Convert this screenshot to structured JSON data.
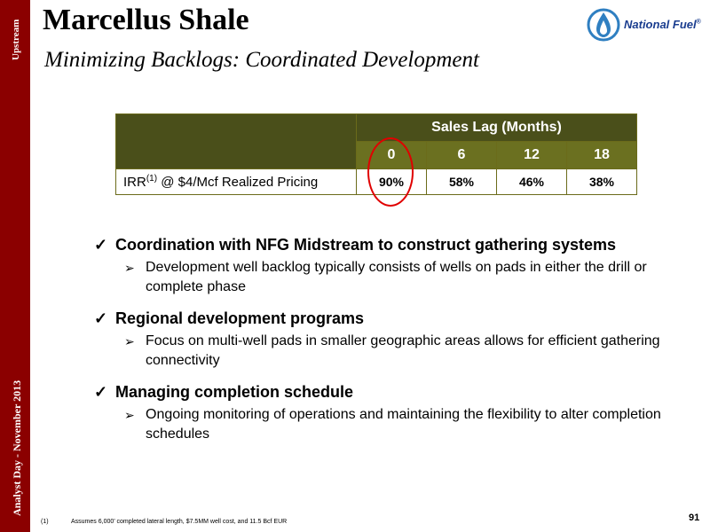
{
  "sidebar": {
    "top_label": "Upstream",
    "bottom_label": "Analyst Day - November 2013"
  },
  "header": {
    "title": "Marcellus Shale",
    "subtitle": "Minimizing Backlogs: Coordinated Development"
  },
  "logo": {
    "text": "National Fuel",
    "mark": "®",
    "icon": "flame-drop-icon",
    "color": "#1a3d8f"
  },
  "table": {
    "group_header": "Sales Lag (Months)",
    "columns": [
      "0",
      "6",
      "12",
      "18"
    ],
    "row": {
      "label_prefix": "IRR",
      "label_sup": "(1)",
      "label_suffix": " @ $4/Mcf Realized Pricing",
      "values": [
        "90%",
        "58%",
        "46%",
        "38%"
      ]
    },
    "highlight_color": "#e00000"
  },
  "bullets": [
    {
      "text": "Coordination with NFG Midstream to construct gathering systems",
      "sub": "Development well backlog typically consists of wells on pads in either the drill or complete phase"
    },
    {
      "text": "Regional development programs",
      "sub": "Focus on multi-well pads in smaller geographic areas allows for efficient gathering connectivity"
    },
    {
      "text": "Managing completion schedule",
      "sub": "Ongoing monitoring of operations and maintaining the flexibility to alter completion schedules"
    }
  ],
  "footnote": {
    "mark": "(1)",
    "text": "Assumes 6,000’ completed lateral length, $7.5MM well cost, and 11.5 Bcf EUR"
  },
  "page_number": "91",
  "colors": {
    "sidebar": "#8b0000",
    "table_header": "#4a4f1a",
    "table_subheader": "#6b7020"
  }
}
